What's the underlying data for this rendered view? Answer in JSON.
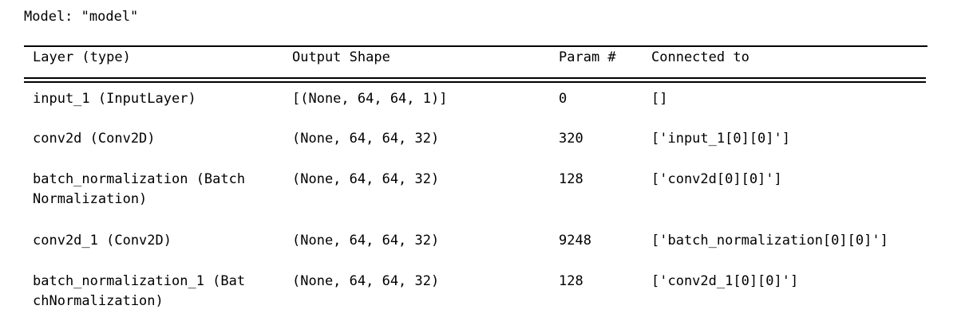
{
  "model_title": "Model: \"model\"",
  "headers": {
    "layer": "Layer (type)",
    "output_shape": "Output Shape",
    "param": "Param #",
    "connected_to": "Connected to"
  },
  "rows": [
    {
      "layer_line1": "input_1 (InputLayer)",
      "layer_line2": "",
      "output_shape": "[(None, 64, 64, 1)]",
      "param": "0",
      "connected_to": "[]"
    },
    {
      "layer_line1": "conv2d (Conv2D)",
      "layer_line2": "",
      "output_shape": "(None, 64, 64, 32)",
      "param": "320",
      "connected_to": "['input_1[0][0]']"
    },
    {
      "layer_line1": "batch_normalization (Batch",
      "layer_line2": "Normalization)",
      "output_shape": "(None, 64, 64, 32)",
      "param": "128",
      "connected_to": "['conv2d[0][0]']"
    },
    {
      "layer_line1": "conv2d_1 (Conv2D)",
      "layer_line2": "",
      "output_shape": "(None, 64, 64, 32)",
      "param": "9248",
      "connected_to": "['batch_normalization[0][0]']"
    },
    {
      "layer_line1": "batch_normalization_1 (Bat",
      "layer_line2": "chNormalization)",
      "output_shape": "(None, 64, 64, 32)",
      "param": "128",
      "connected_to": "['conv2d_1[0][0]']"
    }
  ]
}
